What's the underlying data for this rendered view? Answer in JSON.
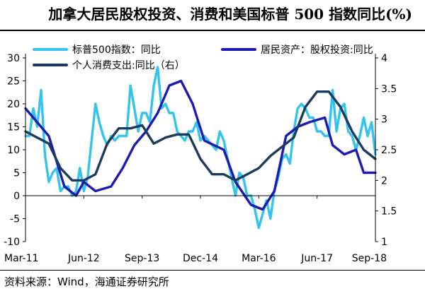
{
  "title": "加拿大居民股权投资、消费和美国标普 500 指数同比(%)",
  "source": "资料来源：Wind，海通证券研究所",
  "chart_data": {
    "type": "line",
    "title": "加拿大居民股权投资、消费和美国标普 500 指数同比(%)",
    "x_ticks": [
      "Mar-11",
      "Jun-12",
      "Sep-13",
      "Dec-14",
      "Mar-16",
      "Jun-17",
      "Sep-18"
    ],
    "y_left": {
      "min": -10,
      "max": 30,
      "ticks": [
        -10,
        -5,
        0,
        5,
        10,
        15,
        20,
        25,
        30
      ]
    },
    "y_right": {
      "min": 1,
      "max": 4,
      "ticks": [
        1,
        1.5,
        2,
        2.5,
        3,
        3.5,
        4
      ]
    },
    "legend_position": "top",
    "series": [
      {
        "name": "标普500指数：同比",
        "color": "#33c3ec",
        "axis": "left",
        "x": [
          "2011-03",
          "2011-04",
          "2011-05",
          "2011-06",
          "2011-07",
          "2011-08",
          "2011-09",
          "2011-10",
          "2011-11",
          "2011-12",
          "2012-01",
          "2012-02",
          "2012-03",
          "2012-04",
          "2012-05",
          "2012-06",
          "2012-07",
          "2012-08",
          "2012-09",
          "2012-10",
          "2012-11",
          "2012-12",
          "2013-01",
          "2013-02",
          "2013-03",
          "2013-04",
          "2013-05",
          "2013-06",
          "2013-07",
          "2013-08",
          "2013-09",
          "2013-10",
          "2013-11",
          "2013-12",
          "2014-01",
          "2014-02",
          "2014-03",
          "2014-04",
          "2014-05",
          "2014-06",
          "2014-07",
          "2014-08",
          "2014-09",
          "2014-10",
          "2014-11",
          "2014-12",
          "2015-01",
          "2015-02",
          "2015-03",
          "2015-04",
          "2015-05",
          "2015-06",
          "2015-07",
          "2015-08",
          "2015-09",
          "2015-10",
          "2015-11",
          "2015-12",
          "2016-01",
          "2016-02",
          "2016-03",
          "2016-04",
          "2016-05",
          "2016-06",
          "2016-07",
          "2016-08",
          "2016-09",
          "2016-10",
          "2016-11",
          "2016-12",
          "2017-01",
          "2017-02",
          "2017-03",
          "2017-04",
          "2017-05",
          "2017-06",
          "2017-07",
          "2017-08",
          "2017-09",
          "2017-10",
          "2017-11",
          "2017-12",
          "2018-01",
          "2018-02",
          "2018-03",
          "2018-04",
          "2018-05",
          "2018-06",
          "2018-07",
          "2018-08",
          "2018-09"
        ],
        "values": [
          13,
          13,
          19,
          15,
          23,
          9,
          3,
          5,
          6,
          1,
          2,
          2,
          0,
          1,
          6,
          1,
          4,
          12,
          20,
          16,
          13,
          11,
          13,
          12,
          13,
          13,
          13,
          24,
          19,
          14,
          18,
          18,
          16,
          24,
          28,
          19,
          20,
          18,
          18,
          14,
          13,
          12,
          14,
          14,
          16,
          12,
          13,
          12,
          11,
          10,
          14,
          12,
          8,
          4,
          0,
          5,
          4,
          0,
          0,
          -3,
          -7,
          -4,
          -1,
          -5,
          1,
          4,
          8,
          9,
          7,
          14,
          19,
          20,
          19,
          17,
          17,
          14,
          14,
          13,
          13,
          23,
          14,
          19,
          20,
          14,
          13,
          10,
          13,
          17,
          13,
          16,
          9
        ]
      },
      {
        "name": "居民资产：股权投资:同比",
        "color": "#1c1ab0",
        "axis": "left",
        "x": [
          "2011-03",
          "2011-09",
          "2012-01",
          "2012-04",
          "2012-06",
          "2012-09",
          "2013-01",
          "2013-04",
          "2013-07",
          "2013-10",
          "2014-01",
          "2014-04",
          "2014-07",
          "2014-10",
          "2015-01",
          "2015-06",
          "2015-09",
          "2016-01",
          "2016-04",
          "2016-07",
          "2016-10",
          "2017-01",
          "2017-04",
          "2017-08",
          "2017-10",
          "2018-01",
          "2018-04",
          "2018-06",
          "2018-09"
        ],
        "values": [
          19,
          13,
          2,
          0,
          3,
          1,
          2,
          6,
          11,
          14,
          18,
          24,
          25,
          20,
          12,
          10,
          3,
          -2,
          -3,
          1,
          13,
          15,
          16,
          17,
          11,
          9,
          10,
          5,
          5
        ]
      },
      {
        "name": "个人消费支出:同比（右）",
        "color": "#1b3b5e",
        "axis": "right",
        "x": [
          "2011-03",
          "2011-06",
          "2011-09",
          "2011-12",
          "2012-03",
          "2012-06",
          "2012-09",
          "2012-12",
          "2013-03",
          "2013-06",
          "2013-09",
          "2013-12",
          "2014-03",
          "2014-06",
          "2014-09",
          "2014-12",
          "2015-03",
          "2015-06",
          "2015-09",
          "2015-12",
          "2016-03",
          "2016-06",
          "2016-09",
          "2016-12",
          "2017-03",
          "2017-06",
          "2017-09",
          "2017-12",
          "2018-03",
          "2018-06",
          "2018-09"
        ],
        "values": [
          2.8,
          2.7,
          2.6,
          2.2,
          2.0,
          2.0,
          2.1,
          2.6,
          2.85,
          2.85,
          2.9,
          2.6,
          2.7,
          2.75,
          2.75,
          2.35,
          2.1,
          2.1,
          2.0,
          2.1,
          2.2,
          2.4,
          2.55,
          2.7,
          3.2,
          3.45,
          3.45,
          3.2,
          2.8,
          2.5,
          2.35
        ]
      }
    ]
  }
}
